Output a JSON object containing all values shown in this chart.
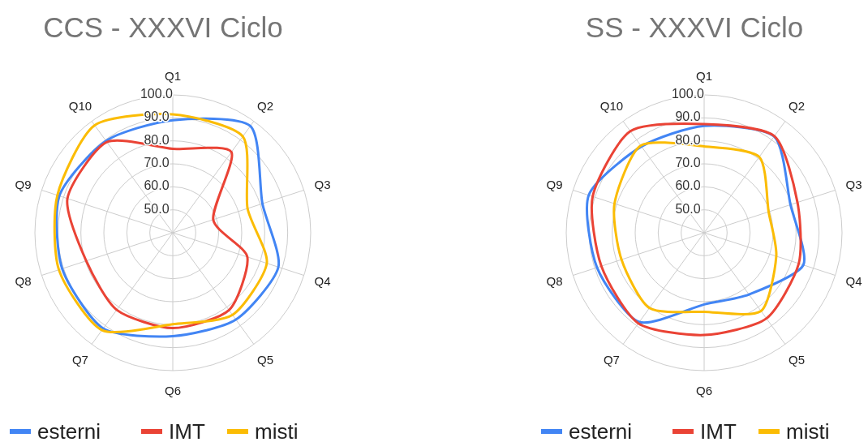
{
  "chart_data": [
    {
      "type": "radar",
      "title": "CCS - XXXVI Ciclo",
      "categories": [
        "Q1",
        "Q2",
        "Q3",
        "Q4",
        "Q5",
        "Q6",
        "Q7",
        "Q8",
        "Q9",
        "Q10"
      ],
      "ylim": [
        40,
        100
      ],
      "yticks": [
        {
          "value": 50,
          "label": "50.0"
        },
        {
          "value": 60,
          "label": "60.0"
        },
        {
          "value": 70,
          "label": "70.0"
        },
        {
          "value": 80,
          "label": "80.0"
        },
        {
          "value": 90,
          "label": "90.0"
        },
        {
          "value": 100,
          "label": "100.0"
        }
      ],
      "grid": true,
      "legend": "bottom",
      "series": [
        {
          "name": "esterni",
          "color": "#4285f4",
          "values": [
            89,
            97.4,
            81,
            88.3,
            86.7,
            85,
            91.5,
            90.6,
            91.9,
            89.4
          ]
        },
        {
          "name": "IMT",
          "color": "#ea4335",
          "values": [
            76.5,
            83.4,
            58.5,
            74.1,
            81.6,
            81.5,
            81.5,
            79.6,
            88.2,
            88.8
          ]
        },
        {
          "name": "misti",
          "color": "#fbbc04",
          "values": [
            91.5,
            91.8,
            74.2,
            83,
            84.2,
            79.8,
            92.4,
            92.1,
            92.8,
            97.8
          ]
        }
      ]
    },
    {
      "type": "radar",
      "title": "SS - XXXVI Ciclo",
      "categories": [
        "Q1",
        "Q2",
        "Q3",
        "Q4",
        "Q5",
        "Q6",
        "Q7",
        "Q8",
        "Q9",
        "Q10"
      ],
      "ylim": [
        40,
        100
      ],
      "yticks": [
        {
          "value": 50,
          "label": "50.0"
        },
        {
          "value": 60,
          "label": "60.0"
        },
        {
          "value": 70,
          "label": "70.0"
        },
        {
          "value": 80,
          "label": "80.0"
        },
        {
          "value": 90,
          "label": "90.0"
        },
        {
          "value": 100,
          "label": "100.0"
        }
      ],
      "grid": true,
      "legend": "bottom",
      "series": [
        {
          "name": "esterni",
          "color": "#4285f4",
          "values": [
            86.5,
            91.8,
            79.5,
            85.4,
            73.2,
            71.2,
            88,
            89,
            92.8,
            86.4
          ]
        },
        {
          "name": "IMT",
          "color": "#ea4335",
          "values": [
            87.3,
            92,
            82.7,
            83.3,
            86.1,
            84.5,
            88.7,
            87,
            91,
            94.6
          ]
        },
        {
          "name": "misti",
          "color": "#fbbc04",
          "values": [
            77.6,
            80.8,
            69.5,
            73,
            82.1,
            74.4,
            80.5,
            77.8,
            81,
            86.9
          ]
        }
      ]
    }
  ]
}
